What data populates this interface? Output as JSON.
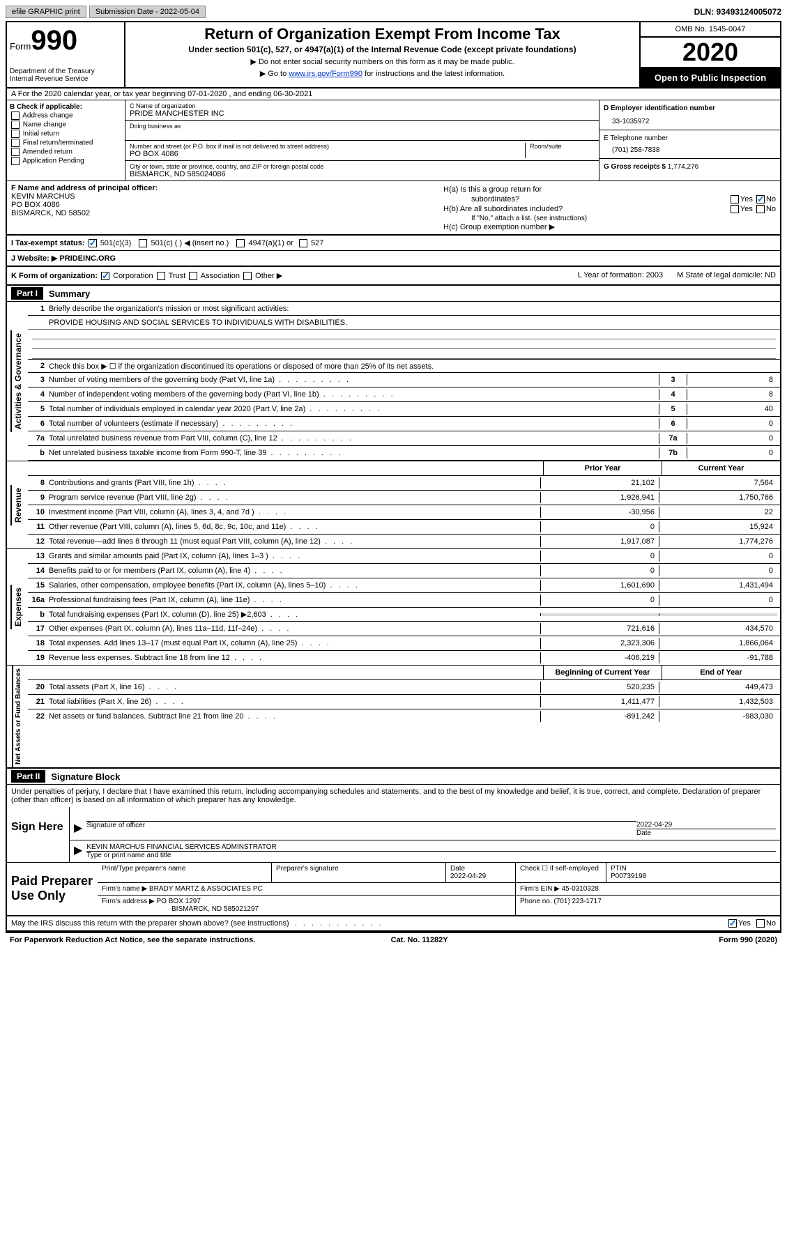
{
  "topbar": {
    "efile": "efile GRAPHIC print",
    "submission": "Submission Date - 2022-05-04",
    "dln": "DLN: 93493124005072"
  },
  "header": {
    "form_label": "Form",
    "form_num": "990",
    "dept": "Department of the Treasury\nInternal Revenue Service",
    "title": "Return of Organization Exempt From Income Tax",
    "sub1": "Under section 501(c), 527, or 4947(a)(1) of the Internal Revenue Code (except private foundations)",
    "sub2": "▶ Do not enter social security numbers on this form as it may be made public.",
    "sub3_pre": "▶ Go to ",
    "sub3_link": "www.irs.gov/Form990",
    "sub3_post": " for instructions and the latest information.",
    "omb": "OMB No. 1545-0047",
    "year": "2020",
    "inspect": "Open to Public Inspection"
  },
  "row_a": "A For the 2020 calendar year, or tax year beginning 07-01-2020    , and ending 06-30-2021",
  "box_b": {
    "title": "B Check if applicable:",
    "opts": [
      "Address change",
      "Name change",
      "Initial return",
      "Final return/terminated",
      "Amended return",
      "Application Pending"
    ]
  },
  "box_c": {
    "name_label": "C Name of organization",
    "name": "PRIDE MANCHESTER INC",
    "dba_label": "Doing business as",
    "street_label": "Number and street (or P.O. box if mail is not delivered to street address)",
    "room_label": "Room/suite",
    "street": "PO BOX 4086",
    "city_label": "City or town, state or province, country, and ZIP or foreign postal code",
    "city": "BISMARCK, ND  585024086"
  },
  "box_d": {
    "ein_label": "D Employer identification number",
    "ein": "33-1035972",
    "phone_label": "E Telephone number",
    "phone": "(701) 258-7838",
    "gross_label": "G Gross receipts $",
    "gross": "1,774,276"
  },
  "box_f": {
    "label": "F Name and address of principal officer:",
    "name": "KEVIN MARCHUS",
    "addr1": "PO BOX 4086",
    "addr2": "BISMARCK, ND   58502"
  },
  "box_h": {
    "ha": "H(a)  Is this a group return for",
    "ha2": "subordinates?",
    "hb": "H(b)  Are all subordinates included?",
    "hb_note": "If \"No,\" attach a list. (see instructions)",
    "hc": "H(c)  Group exemption number ▶"
  },
  "row_i": {
    "label": "I  Tax-exempt status:",
    "opt1": "501(c)(3)",
    "opt2": "501(c) (  ) ◀ (insert no.)",
    "opt3": "4947(a)(1) or",
    "opt4": "527"
  },
  "row_j": {
    "label": "J  Website: ▶",
    "val": "PRIDEINC.ORG"
  },
  "row_k": {
    "label": "K Form of organization:",
    "opts": [
      "Corporation",
      "Trust",
      "Association",
      "Other ▶"
    ],
    "l": "L Year of formation: 2003",
    "m": "M State of legal domicile: ND"
  },
  "part1": {
    "header": "Part I",
    "title": "Summary",
    "line1": "Briefly describe the organization's mission or most significant activities:",
    "mission": "PROVIDE HOUSING AND SOCIAL SERVICES TO INDIVIDUALS WITH DISABILITIES.",
    "line2": "Check this box ▶ ☐  if the organization discontinued its operations or disposed of more than 25% of its net assets.",
    "gov_tab": "Activities & Governance",
    "rev_tab": "Revenue",
    "exp_tab": "Expenses",
    "net_tab": "Net Assets or Fund Balances",
    "lines_gov": [
      {
        "n": "3",
        "d": "Number of voting members of the governing body (Part VI, line 1a)",
        "b": "3",
        "v": "8"
      },
      {
        "n": "4",
        "d": "Number of independent voting members of the governing body (Part VI, line 1b)",
        "b": "4",
        "v": "8"
      },
      {
        "n": "5",
        "d": "Total number of individuals employed in calendar year 2020 (Part V, line 2a)",
        "b": "5",
        "v": "40"
      },
      {
        "n": "6",
        "d": "Total number of volunteers (estimate if necessary)",
        "b": "6",
        "v": "0"
      },
      {
        "n": "7a",
        "d": "Total unrelated business revenue from Part VIII, column (C), line 12",
        "b": "7a",
        "v": "0"
      },
      {
        "n": "b",
        "d": "Net unrelated business taxable income from Form 990-T, line 39",
        "b": "7b",
        "v": "0"
      }
    ],
    "col_prior": "Prior Year",
    "col_current": "Current Year",
    "lines_rev": [
      {
        "n": "8",
        "d": "Contributions and grants (Part VIII, line 1h)",
        "p": "21,102",
        "c": "7,564"
      },
      {
        "n": "9",
        "d": "Program service revenue (Part VIII, line 2g)",
        "p": "1,926,941",
        "c": "1,750,766"
      },
      {
        "n": "10",
        "d": "Investment income (Part VIII, column (A), lines 3, 4, and 7d )",
        "p": "-30,956",
        "c": "22"
      },
      {
        "n": "11",
        "d": "Other revenue (Part VIII, column (A), lines 5, 6d, 8c, 9c, 10c, and 11e)",
        "p": "0",
        "c": "15,924"
      },
      {
        "n": "12",
        "d": "Total revenue—add lines 8 through 11 (must equal Part VIII, column (A), line 12)",
        "p": "1,917,087",
        "c": "1,774,276"
      }
    ],
    "lines_exp": [
      {
        "n": "13",
        "d": "Grants and similar amounts paid (Part IX, column (A), lines 1–3 )",
        "p": "0",
        "c": "0"
      },
      {
        "n": "14",
        "d": "Benefits paid to or for members (Part IX, column (A), line 4)",
        "p": "0",
        "c": "0"
      },
      {
        "n": "15",
        "d": "Salaries, other compensation, employee benefits (Part IX, column (A), lines 5–10)",
        "p": "1,601,690",
        "c": "1,431,494"
      },
      {
        "n": "16a",
        "d": "Professional fundraising fees (Part IX, column (A), line 11e)",
        "p": "0",
        "c": "0"
      },
      {
        "n": "b",
        "d": "Total fundraising expenses (Part IX, column (D), line 25) ▶2,603",
        "p": "",
        "c": ""
      },
      {
        "n": "17",
        "d": "Other expenses (Part IX, column (A), lines 11a–11d, 11f–24e)",
        "p": "721,616",
        "c": "434,570"
      },
      {
        "n": "18",
        "d": "Total expenses. Add lines 13–17 (must equal Part IX, column (A), line 25)",
        "p": "2,323,306",
        "c": "1,866,064"
      },
      {
        "n": "19",
        "d": "Revenue less expenses. Subtract line 18 from line 12",
        "p": "-406,219",
        "c": "-91,788"
      }
    ],
    "col_begin": "Beginning of Current Year",
    "col_end": "End of Year",
    "lines_net": [
      {
        "n": "20",
        "d": "Total assets (Part X, line 16)",
        "p": "520,235",
        "c": "449,473"
      },
      {
        "n": "21",
        "d": "Total liabilities (Part X, line 26)",
        "p": "1,411,477",
        "c": "1,432,503"
      },
      {
        "n": "22",
        "d": "Net assets or fund balances. Subtract line 21 from line 20",
        "p": "-891,242",
        "c": "-983,030"
      }
    ]
  },
  "part2": {
    "header": "Part II",
    "title": "Signature Block",
    "perjury": "Under penalties of perjury, I declare that I have examined this return, including accompanying schedules and statements, and to the best of my knowledge and belief, it is true, correct, and complete. Declaration of preparer (other than officer) is based on all information of which preparer has any knowledge.",
    "sign_here": "Sign Here",
    "sig_officer": "Signature of officer",
    "sig_date": "2022-04-29",
    "sig_date_label": "Date",
    "officer_name": "KEVIN MARCHUS  FINANCIAL SERVICES ADMINSTRATOR",
    "officer_label": "Type or print name and title",
    "paid": "Paid Preparer Use Only",
    "prep_name_label": "Print/Type preparer's name",
    "prep_sig_label": "Preparer's signature",
    "prep_date_label": "Date",
    "prep_date": "2022-04-29",
    "self_emp": "Check ☐ if self-employed",
    "ptin_label": "PTIN",
    "ptin": "P00739198",
    "firm_name_label": "Firm's name    ▶",
    "firm_name": "BRADY MARTZ & ASSOCIATES PC",
    "firm_ein_label": "Firm's EIN ▶",
    "firm_ein": "45-0310328",
    "firm_addr_label": "Firm's address ▶",
    "firm_addr1": "PO BOX 1297",
    "firm_addr2": "BISMARCK, ND   585021297",
    "firm_phone_label": "Phone no.",
    "firm_phone": "(701) 223-1717",
    "discuss": "May the IRS discuss this return with the preparer shown above? (see instructions)",
    "paperwork": "For Paperwork Reduction Act Notice, see the separate instructions.",
    "cat": "Cat. No. 11282Y",
    "form_footer": "Form 990 (2020)"
  }
}
